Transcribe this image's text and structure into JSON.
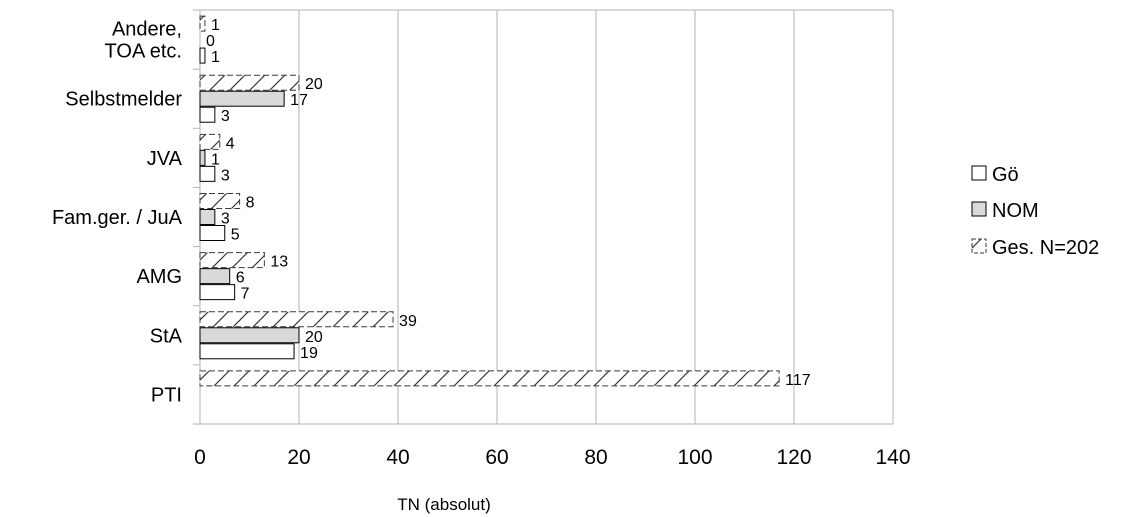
{
  "chart_data": {
    "type": "bar",
    "orientation": "horizontal",
    "categories": [
      [
        "Andere,",
        "TOA etc."
      ],
      [
        "Selbstmelder"
      ],
      [
        "JVA"
      ],
      [
        "Fam.ger. / JuA"
      ],
      [
        "AMG"
      ],
      [
        "StA"
      ],
      [
        "PTI"
      ]
    ],
    "series": [
      {
        "name": "Gö",
        "values": [
          1,
          3,
          3,
          5,
          7,
          19,
          null
        ],
        "labels": [
          "1",
          "3",
          "3",
          "5",
          "7",
          "19",
          ""
        ],
        "fill": "#ffffff",
        "pattern": "none"
      },
      {
        "name": "NOM",
        "values": [
          0,
          17,
          1,
          3,
          6,
          20,
          null
        ],
        "labels": [
          "0",
          "17",
          "1",
          "3",
          "6",
          "20",
          ""
        ],
        "fill": "#d9d9d9",
        "pattern": "none"
      },
      {
        "name": "Ges. N=202",
        "values": [
          1,
          20,
          4,
          8,
          13,
          39,
          117
        ],
        "labels": [
          "1",
          "20",
          "4",
          "8",
          "13",
          "39",
          "117"
        ],
        "fill": "#ffffff",
        "pattern": "diagonal-hatch"
      }
    ],
    "xlabel": "TN (absolut)",
    "ylabel": "",
    "xlim": [
      0,
      140
    ],
    "xticks": [
      0,
      20,
      40,
      60,
      80,
      100,
      120,
      140
    ],
    "grid": "vertical",
    "legend_position": "right"
  }
}
